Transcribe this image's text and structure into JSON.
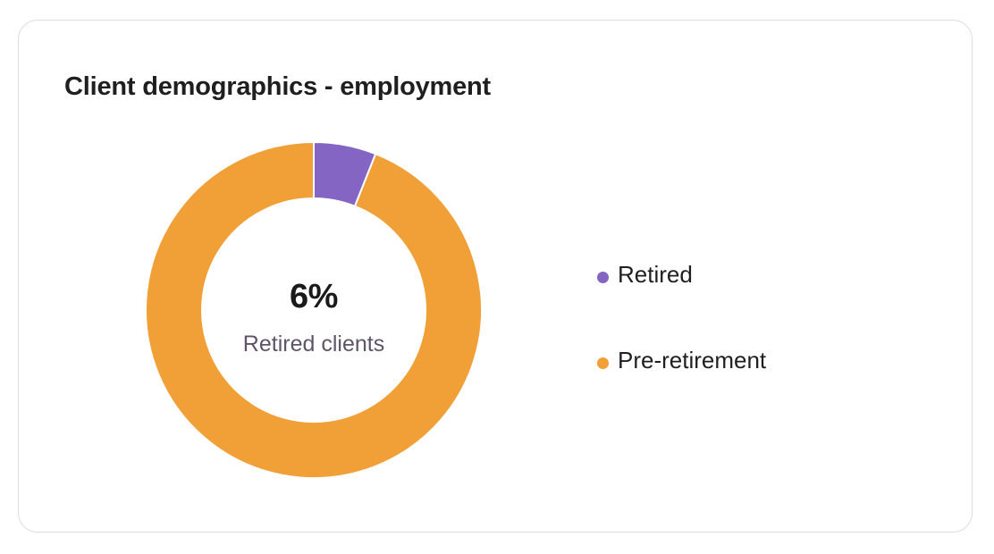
{
  "card": {
    "title": "Client demographics - employment"
  },
  "center": {
    "value": "6%",
    "caption": "Retired clients"
  },
  "colors": {
    "retired": "#8565C4",
    "pre_retirement": "#F0A037",
    "slice_border": "#ffffff"
  },
  "chart_data": {
    "type": "pie",
    "variant": "donut",
    "title": "Client demographics - employment",
    "categories": [
      "Retired",
      "Pre-retirement"
    ],
    "values": [
      6,
      94
    ],
    "unit": "%",
    "legend_position": "right",
    "center_label": "6%",
    "center_caption": "Retired clients"
  },
  "legend": {
    "items": [
      {
        "label": "Retired",
        "color": "#8565C4"
      },
      {
        "label": "Pre-retirement",
        "color": "#F0A037"
      }
    ]
  }
}
